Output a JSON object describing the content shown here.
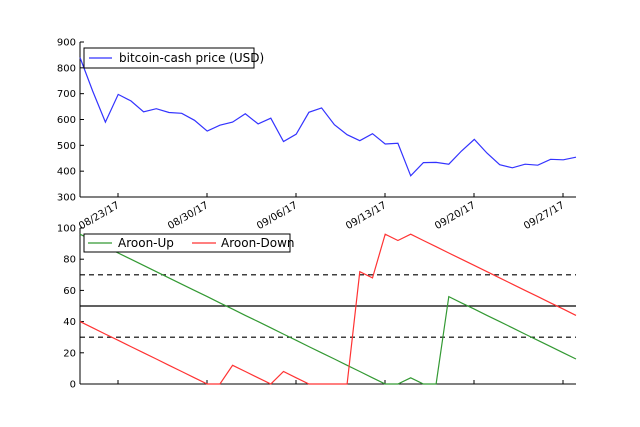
{
  "chart_data": [
    {
      "type": "line",
      "title": "",
      "xlabel": "",
      "ylabel": "",
      "ylim": [
        300,
        900
      ],
      "yticks": [
        300,
        400,
        500,
        600,
        700,
        800,
        900
      ],
      "xticks": [
        "08/23/17",
        "08/30/17",
        "09/06/17",
        "09/13/17",
        "09/20/17",
        "09/27/17"
      ],
      "legend": "top-left",
      "series": [
        {
          "name": "bitcoin-cash price (USD)",
          "color": "#3333ff",
          "values": [
            840,
            710,
            590,
            697,
            672,
            630,
            642,
            627,
            624,
            597,
            555,
            578,
            590,
            622,
            583,
            605,
            515,
            543,
            628,
            645,
            580,
            541,
            518,
            545,
            505,
            508,
            382,
            433,
            434,
            427,
            478,
            523,
            470,
            425,
            413,
            427,
            423,
            446,
            444,
            454
          ]
        }
      ]
    },
    {
      "type": "line",
      "title": "",
      "xlabel": "",
      "ylabel": "",
      "ylim": [
        0,
        100
      ],
      "yticks": [
        0,
        20,
        40,
        60,
        80,
        100
      ],
      "reference_lines": [
        {
          "y": 70,
          "style": "dashed"
        },
        {
          "y": 50,
          "style": "solid"
        },
        {
          "y": 30,
          "style": "dashed"
        }
      ],
      "legend": "top-left",
      "series": [
        {
          "name": "Aroon-Up",
          "color": "#339933",
          "values": [
            96,
            92,
            88,
            84,
            80,
            76,
            72,
            68,
            64,
            60,
            56,
            52,
            48,
            44,
            40,
            36,
            32,
            28,
            24,
            20,
            16,
            12,
            8,
            4,
            0,
            0,
            4,
            0,
            0,
            56,
            52,
            48,
            44,
            40,
            36,
            32,
            28,
            24,
            20,
            16
          ]
        },
        {
          "name": "Aroon-Down",
          "color": "#ff3333",
          "values": [
            40,
            36,
            32,
            28,
            24,
            20,
            16,
            12,
            8,
            4,
            0,
            0,
            12,
            8,
            4,
            0,
            8,
            4,
            0,
            0,
            0,
            0,
            72,
            68,
            96,
            92,
            96,
            92,
            88,
            84,
            80,
            76,
            72,
            68,
            64,
            60,
            56,
            52,
            48,
            44
          ]
        }
      ]
    }
  ]
}
